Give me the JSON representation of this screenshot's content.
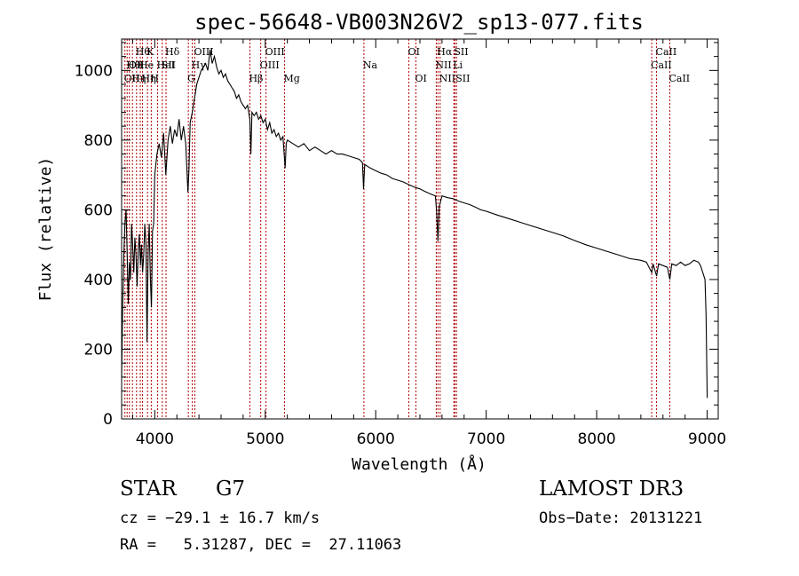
{
  "chart_data": {
    "type": "line",
    "title": "spec-56648-VB003N26V2_sp13-077.fits",
    "xlabel": "Wavelength (Å)",
    "ylabel": "Flux (relative)",
    "xlim": [
      3700,
      9100
    ],
    "ylim": [
      0,
      1090
    ],
    "xticks": [
      4000,
      5000,
      6000,
      7000,
      8000,
      9000
    ],
    "yticks": [
      0,
      200,
      400,
      600,
      800,
      1000
    ],
    "grid": false,
    "series": [
      {
        "points": [
          [
            3700,
            120
          ],
          [
            3710,
            330
          ],
          [
            3720,
            470
          ],
          [
            3730,
            560
          ],
          [
            3740,
            600
          ],
          [
            3750,
            480
          ],
          [
            3760,
            330
          ],
          [
            3770,
            450
          ],
          [
            3780,
            400
          ],
          [
            3790,
            560
          ],
          [
            3800,
            500
          ],
          [
            3810,
            420
          ],
          [
            3820,
            520
          ],
          [
            3830,
            470
          ],
          [
            3840,
            380
          ],
          [
            3850,
            480
          ],
          [
            3860,
            530
          ],
          [
            3870,
            440
          ],
          [
            3880,
            500
          ],
          [
            3890,
            420
          ],
          [
            3900,
            470
          ],
          [
            3910,
            560
          ],
          [
            3920,
            500
          ],
          [
            3930,
            220
          ],
          [
            3940,
            480
          ],
          [
            3950,
            560
          ],
          [
            3960,
            400
          ],
          [
            3970,
            320
          ],
          [
            3980,
            540
          ],
          [
            3990,
            560
          ],
          [
            4000,
            700
          ],
          [
            4020,
            760
          ],
          [
            4040,
            790
          ],
          [
            4060,
            750
          ],
          [
            4080,
            820
          ],
          [
            4100,
            700
          ],
          [
            4120,
            800
          ],
          [
            4140,
            840
          ],
          [
            4160,
            790
          ],
          [
            4180,
            830
          ],
          [
            4200,
            810
          ],
          [
            4220,
            860
          ],
          [
            4240,
            800
          ],
          [
            4260,
            840
          ],
          [
            4280,
            790
          ],
          [
            4300,
            650
          ],
          [
            4310,
            720
          ],
          [
            4320,
            850
          ],
          [
            4340,
            880
          ],
          [
            4360,
            920
          ],
          [
            4380,
            960
          ],
          [
            4400,
            980
          ],
          [
            4420,
            1000
          ],
          [
            4440,
            1010
          ],
          [
            4460,
            1020
          ],
          [
            4480,
            1000
          ],
          [
            4500,
            1060
          ],
          [
            4520,
            1020
          ],
          [
            4540,
            1040
          ],
          [
            4560,
            1010
          ],
          [
            4580,
            990
          ],
          [
            4600,
            1000
          ],
          [
            4620,
            980
          ],
          [
            4640,
            990
          ],
          [
            4660,
            970
          ],
          [
            4680,
            960
          ],
          [
            4700,
            950
          ],
          [
            4720,
            940
          ],
          [
            4740,
            920
          ],
          [
            4760,
            930
          ],
          [
            4780,
            910
          ],
          [
            4800,
            900
          ],
          [
            4820,
            890
          ],
          [
            4840,
            900
          ],
          [
            4860,
            860
          ],
          [
            4870,
            760
          ],
          [
            4880,
            880
          ],
          [
            4900,
            870
          ],
          [
            4920,
            880
          ],
          [
            4940,
            860
          ],
          [
            4960,
            870
          ],
          [
            4980,
            850
          ],
          [
            5000,
            860
          ],
          [
            5020,
            830
          ],
          [
            5040,
            850
          ],
          [
            5060,
            820
          ],
          [
            5080,
            830
          ],
          [
            5100,
            810
          ],
          [
            5120,
            820
          ],
          [
            5140,
            800
          ],
          [
            5160,
            810
          ],
          [
            5180,
            720
          ],
          [
            5190,
            790
          ],
          [
            5200,
            800
          ],
          [
            5250,
            790
          ],
          [
            5300,
            780
          ],
          [
            5350,
            790
          ],
          [
            5400,
            770
          ],
          [
            5450,
            780
          ],
          [
            5500,
            770
          ],
          [
            5550,
            760
          ],
          [
            5600,
            770
          ],
          [
            5650,
            760
          ],
          [
            5700,
            760
          ],
          [
            5750,
            755
          ],
          [
            5800,
            750
          ],
          [
            5850,
            745
          ],
          [
            5880,
            735
          ],
          [
            5890,
            660
          ],
          [
            5900,
            730
          ],
          [
            5950,
            720
          ],
          [
            6000,
            712
          ],
          [
            6050,
            705
          ],
          [
            6100,
            700
          ],
          [
            6150,
            690
          ],
          [
            6200,
            685
          ],
          [
            6250,
            680
          ],
          [
            6300,
            672
          ],
          [
            6350,
            665
          ],
          [
            6400,
            660
          ],
          [
            6450,
            652
          ],
          [
            6500,
            645
          ],
          [
            6540,
            640
          ],
          [
            6550,
            600
          ],
          [
            6563,
            510
          ],
          [
            6575,
            610
          ],
          [
            6600,
            640
          ],
          [
            6650,
            635
          ],
          [
            6700,
            632
          ],
          [
            6750,
            625
          ],
          [
            6800,
            620
          ],
          [
            6850,
            615
          ],
          [
            6900,
            608
          ],
          [
            6950,
            600
          ],
          [
            7000,
            596
          ],
          [
            7100,
            585
          ],
          [
            7200,
            575
          ],
          [
            7300,
            565
          ],
          [
            7400,
            555
          ],
          [
            7500,
            545
          ],
          [
            7600,
            535
          ],
          [
            7700,
            525
          ],
          [
            7800,
            512
          ],
          [
            7900,
            500
          ],
          [
            8000,
            490
          ],
          [
            8100,
            480
          ],
          [
            8200,
            470
          ],
          [
            8300,
            460
          ],
          [
            8400,
            455
          ],
          [
            8450,
            450
          ],
          [
            8498,
            420
          ],
          [
            8510,
            445
          ],
          [
            8542,
            410
          ],
          [
            8560,
            445
          ],
          [
            8600,
            440
          ],
          [
            8640,
            435
          ],
          [
            8662,
            400
          ],
          [
            8680,
            445
          ],
          [
            8720,
            440
          ],
          [
            8760,
            450
          ],
          [
            8800,
            440
          ],
          [
            8840,
            445
          ],
          [
            8880,
            455
          ],
          [
            8920,
            450
          ],
          [
            8940,
            440
          ],
          [
            8960,
            420
          ],
          [
            8980,
            400
          ],
          [
            8990,
            300
          ],
          [
            9000,
            60
          ]
        ]
      }
    ],
    "lines": [
      {
        "x": 3730,
        "label": "OII",
        "row": 2
      },
      {
        "x": 3750,
        "label": "Hθ",
        "row": 1
      },
      {
        "x": 3770,
        "label": "OII",
        "row": 1
      },
      {
        "x": 3798,
        "label": "Hη",
        "row": 2
      },
      {
        "x": 3835,
        "label": "Hθ",
        "row": 0
      },
      {
        "x": 3869,
        "label": "He",
        "row": 1
      },
      {
        "x": 3889,
        "label": "Hη",
        "row": 2
      },
      {
        "x": 3934,
        "label": "K",
        "row": 0
      },
      {
        "x": 3968,
        "label": "H",
        "row": 2
      },
      {
        "x": 4026,
        "label": "HeI",
        "row": 1
      },
      {
        "x": 4068,
        "label": "SII",
        "row": 1
      },
      {
        "x": 4102,
        "label": "Hδ",
        "row": 0
      },
      {
        "x": 4304,
        "label": "G",
        "row": 2
      },
      {
        "x": 4340,
        "label": "Hγ",
        "row": 1
      },
      {
        "x": 4363,
        "label": "OIII",
        "row": 0
      },
      {
        "x": 4861,
        "label": "Hβ",
        "row": 2
      },
      {
        "x": 4959,
        "label": "OIII",
        "row": 1
      },
      {
        "x": 5007,
        "label": "OIII",
        "row": 0
      },
      {
        "x": 5175,
        "label": "Mg",
        "row": 2
      },
      {
        "x": 5893,
        "label": "Na",
        "row": 1
      },
      {
        "x": 6300,
        "label": "OI",
        "row": 0
      },
      {
        "x": 6364,
        "label": "OI",
        "row": 2
      },
      {
        "x": 6548,
        "label": "NII",
        "row": 1
      },
      {
        "x": 6563,
        "label": "Hα",
        "row": 0
      },
      {
        "x": 6583,
        "label": "NII",
        "row": 2
      },
      {
        "x": 6707,
        "label": "Li",
        "row": 1
      },
      {
        "x": 6716,
        "label": "SII",
        "row": 0
      },
      {
        "x": 6731,
        "label": "SII",
        "row": 2
      },
      {
        "x": 8498,
        "label": "CaII",
        "row": 1
      },
      {
        "x": 8542,
        "label": "CaII",
        "row": 0
      },
      {
        "x": 8662,
        "label": "CaII",
        "row": 2
      }
    ]
  },
  "info": {
    "object_class": "STAR",
    "subclass": "G7",
    "survey": "LAMOST DR3",
    "cz": "cz = −29.1 ± 16.7 km/s",
    "obs_date": "Obs−Date: 20131221",
    "coords": "RA =   5.31287, DEC =  27.11063"
  }
}
